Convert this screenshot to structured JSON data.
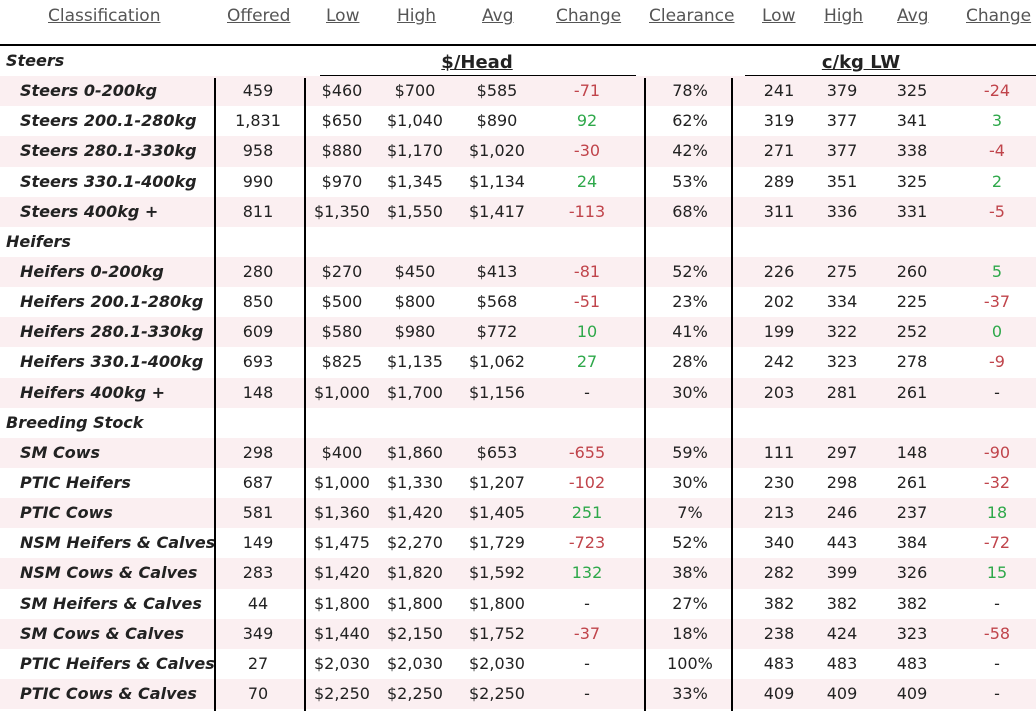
{
  "columns": [
    "Classification",
    "Offered",
    "Low",
    "High",
    "Avg",
    "Change",
    "Clearance",
    "Low",
    "High",
    "Avg",
    "Change"
  ],
  "units": {
    "head": "$/Head",
    "kg": "c/kg LW"
  },
  "rows": [
    {
      "type": "group",
      "label": "Steers"
    },
    {
      "type": "data",
      "c": [
        "Steers 0-200kg",
        "459",
        "$460",
        "$700",
        "$585",
        "-71",
        "78%",
        "241",
        "379",
        "325",
        "-24"
      ],
      "ch1": "neg",
      "ch2": "neg"
    },
    {
      "type": "data",
      "c": [
        "Steers 200.1-280kg",
        "1,831",
        "$650",
        "$1,040",
        "$890",
        "92",
        "62%",
        "319",
        "377",
        "341",
        "3"
      ],
      "ch1": "pos",
      "ch2": "pos"
    },
    {
      "type": "data",
      "c": [
        "Steers 280.1-330kg",
        "958",
        "$880",
        "$1,170",
        "$1,020",
        "-30",
        "42%",
        "271",
        "377",
        "338",
        "-4"
      ],
      "ch1": "neg",
      "ch2": "neg"
    },
    {
      "type": "data",
      "c": [
        "Steers 330.1-400kg",
        "990",
        "$970",
        "$1,345",
        "$1,134",
        "24",
        "53%",
        "289",
        "351",
        "325",
        "2"
      ],
      "ch1": "pos",
      "ch2": "pos"
    },
    {
      "type": "data",
      "c": [
        "Steers 400kg +",
        "811",
        "$1,350",
        "$1,550",
        "$1,417",
        "-113",
        "68%",
        "311",
        "336",
        "331",
        "-5"
      ],
      "ch1": "neg",
      "ch2": "neg"
    },
    {
      "type": "group",
      "label": "Heifers"
    },
    {
      "type": "data",
      "c": [
        "Heifers 0-200kg",
        "280",
        "$270",
        "$450",
        "$413",
        "-81",
        "52%",
        "226",
        "275",
        "260",
        "5"
      ],
      "ch1": "neg",
      "ch2": "pos"
    },
    {
      "type": "data",
      "c": [
        "Heifers 200.1-280kg",
        "850",
        "$500",
        "$800",
        "$568",
        "-51",
        "23%",
        "202",
        "334",
        "225",
        "-37"
      ],
      "ch1": "neg",
      "ch2": "neg"
    },
    {
      "type": "data",
      "c": [
        "Heifers 280.1-330kg",
        "609",
        "$580",
        "$980",
        "$772",
        "10",
        "41%",
        "199",
        "322",
        "252",
        "0"
      ],
      "ch1": "pos",
      "ch2": "pos"
    },
    {
      "type": "data",
      "c": [
        "Heifers 330.1-400kg",
        "693",
        "$825",
        "$1,135",
        "$1,062",
        "27",
        "28%",
        "242",
        "323",
        "278",
        "-9"
      ],
      "ch1": "pos",
      "ch2": "neg"
    },
    {
      "type": "data",
      "c": [
        "Heifers 400kg +",
        "148",
        "$1,000",
        "$1,700",
        "$1,156",
        "-",
        "30%",
        "203",
        "281",
        "261",
        "-"
      ],
      "ch1": "",
      "ch2": ""
    },
    {
      "type": "group",
      "label": "Breeding Stock"
    },
    {
      "type": "data",
      "c": [
        "SM Cows",
        "298",
        "$400",
        "$1,860",
        "$653",
        "-655",
        "59%",
        "111",
        "297",
        "148",
        "-90"
      ],
      "ch1": "neg",
      "ch2": "neg"
    },
    {
      "type": "data",
      "c": [
        "PTIC Heifers",
        "687",
        "$1,000",
        "$1,330",
        "$1,207",
        "-102",
        "30%",
        "230",
        "298",
        "261",
        "-32"
      ],
      "ch1": "neg",
      "ch2": "neg"
    },
    {
      "type": "data",
      "c": [
        "PTIC Cows",
        "581",
        "$1,360",
        "$1,420",
        "$1,405",
        "251",
        "7%",
        "213",
        "246",
        "237",
        "18"
      ],
      "ch1": "pos",
      "ch2": "pos"
    },
    {
      "type": "data",
      "c": [
        "NSM Heifers & Calves",
        "149",
        "$1,475",
        "$2,270",
        "$1,729",
        "-723",
        "52%",
        "340",
        "443",
        "384",
        "-72"
      ],
      "ch1": "neg",
      "ch2": "neg"
    },
    {
      "type": "data",
      "c": [
        "NSM Cows & Calves",
        "283",
        "$1,420",
        "$1,820",
        "$1,592",
        "132",
        "38%",
        "282",
        "399",
        "326",
        "15"
      ],
      "ch1": "pos",
      "ch2": "pos"
    },
    {
      "type": "data",
      "c": [
        "SM Heifers & Calves",
        "44",
        "$1,800",
        "$1,800",
        "$1,800",
        "-",
        "27%",
        "382",
        "382",
        "382",
        "-"
      ],
      "ch1": "",
      "ch2": ""
    },
    {
      "type": "data",
      "c": [
        "SM Cows & Calves",
        "349",
        "$1,440",
        "$2,150",
        "$1,752",
        "-37",
        "18%",
        "238",
        "424",
        "323",
        "-58"
      ],
      "ch1": "neg",
      "ch2": "neg"
    },
    {
      "type": "data",
      "c": [
        "PTIC Heifers & Calves",
        "27",
        "$2,030",
        "$2,030",
        "$2,030",
        "-",
        "100%",
        "483",
        "483",
        "483",
        "-"
      ],
      "ch1": "",
      "ch2": ""
    },
    {
      "type": "data",
      "c": [
        "PTIC Cows & Calves",
        "70",
        "$2,250",
        "$2,250",
        "$2,250",
        "-",
        "33%",
        "409",
        "409",
        "409",
        "-"
      ],
      "ch1": "",
      "ch2": ""
    }
  ]
}
